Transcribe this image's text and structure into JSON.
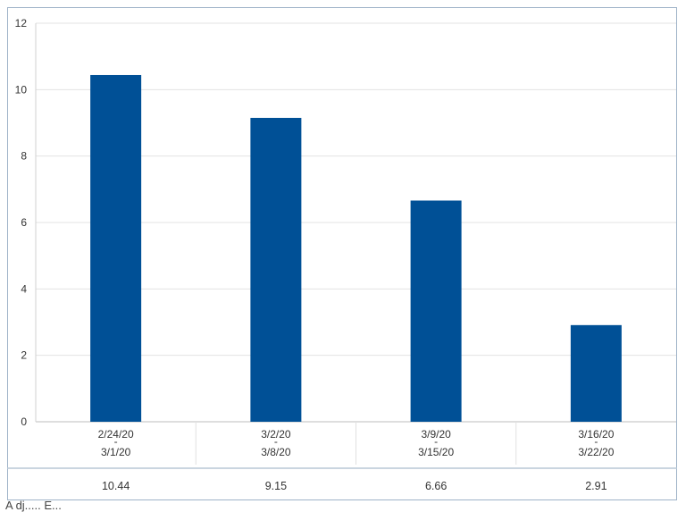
{
  "chart_data": {
    "type": "bar",
    "title": "",
    "xlabel": "",
    "ylabel": "",
    "ylim": [
      0,
      12
    ],
    "yticks": [
      0,
      2,
      4,
      6,
      8,
      10,
      12
    ],
    "categories": [
      [
        "2/24/20",
        "-",
        "3/1/20"
      ],
      [
        "3/2/20",
        "-",
        "3/8/20"
      ],
      [
        "3/9/20",
        "-",
        "3/15/20"
      ],
      [
        "3/16/20",
        "-",
        "3/22/20"
      ]
    ],
    "values": [
      10.44,
      9.15,
      6.66,
      2.91
    ],
    "value_labels": [
      "10.44",
      "9.15",
      "6.66",
      "2.91"
    ],
    "bar_color": "#005096",
    "grid": true,
    "data_table_below": true
  },
  "footer": {
    "partial_text": "A dj..... E..."
  }
}
